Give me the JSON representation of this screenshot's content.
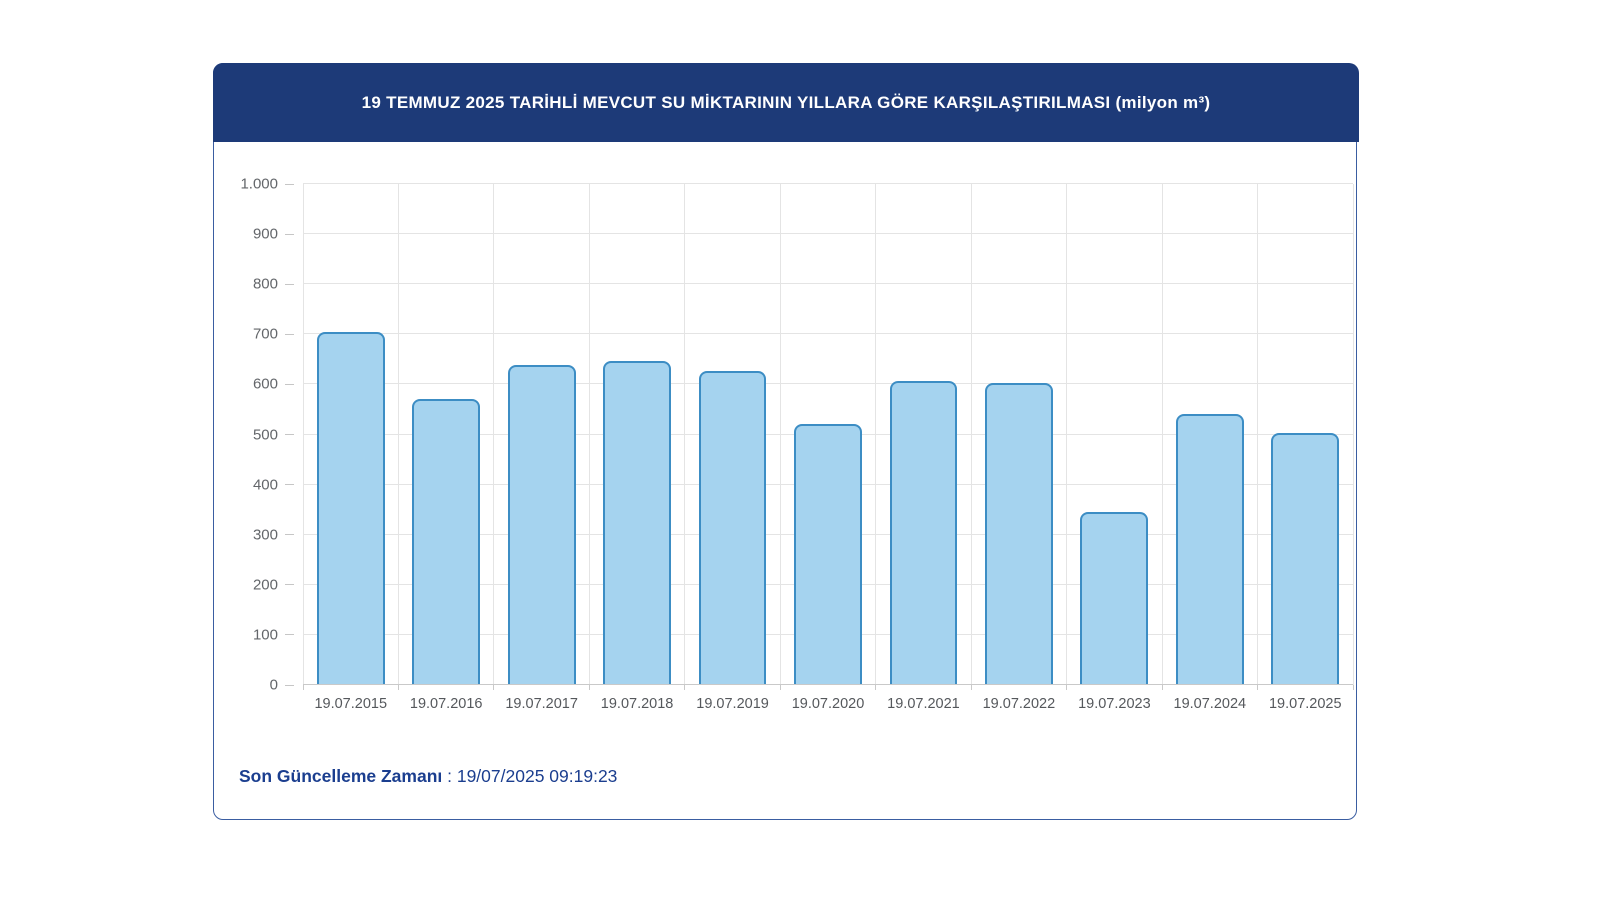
{
  "header": {
    "title": "19 TEMMUZ 2025 TARİHLİ MEVCUT SU MİKTARININ YILLARA GÖRE KARŞILAŞTIRILMASI (milyon m³)"
  },
  "footer": {
    "label": "Son Güncelleme Zamanı",
    "separator": " : ",
    "value": "19/07/2025 09:19:23"
  },
  "colors": {
    "header_background": "#1d3a78",
    "card_border": "#3a5da1",
    "footer_text": "#1b3e8f",
    "bar_fill": "#a5d3ef",
    "bar_border": "#3c8dc4",
    "gridline": "#e4e4e4",
    "axis_line": "#c9c9c9"
  },
  "chart_data": {
    "type": "bar",
    "title": "19 TEMMUZ 2025 TARİHLİ MEVCUT SU MİKTARININ YILLARA GÖRE KARŞILAŞTIRILMASI (milyon m³)",
    "categories": [
      "19.07.2015",
      "19.07.2016",
      "19.07.2017",
      "19.07.2018",
      "19.07.2019",
      "19.07.2020",
      "19.07.2021",
      "19.07.2022",
      "19.07.2023",
      "19.07.2024",
      "19.07.2025"
    ],
    "values": [
      704,
      570,
      638,
      647,
      627,
      521,
      606,
      603,
      345,
      541,
      503
    ],
    "xlabel": "",
    "ylabel": "",
    "ylim": [
      0,
      1000
    ],
    "ytick_step": 100,
    "ytick_labels_bottom_to_top": [
      "0",
      "100",
      "200",
      "300",
      "400",
      "500",
      "600",
      "700",
      "800",
      "900",
      "1.000"
    ],
    "grid": "horizontal and vertical, light gray",
    "legend": "none",
    "bar_fill": "#a5d3ef",
    "bar_border": "#3c8dc4"
  }
}
